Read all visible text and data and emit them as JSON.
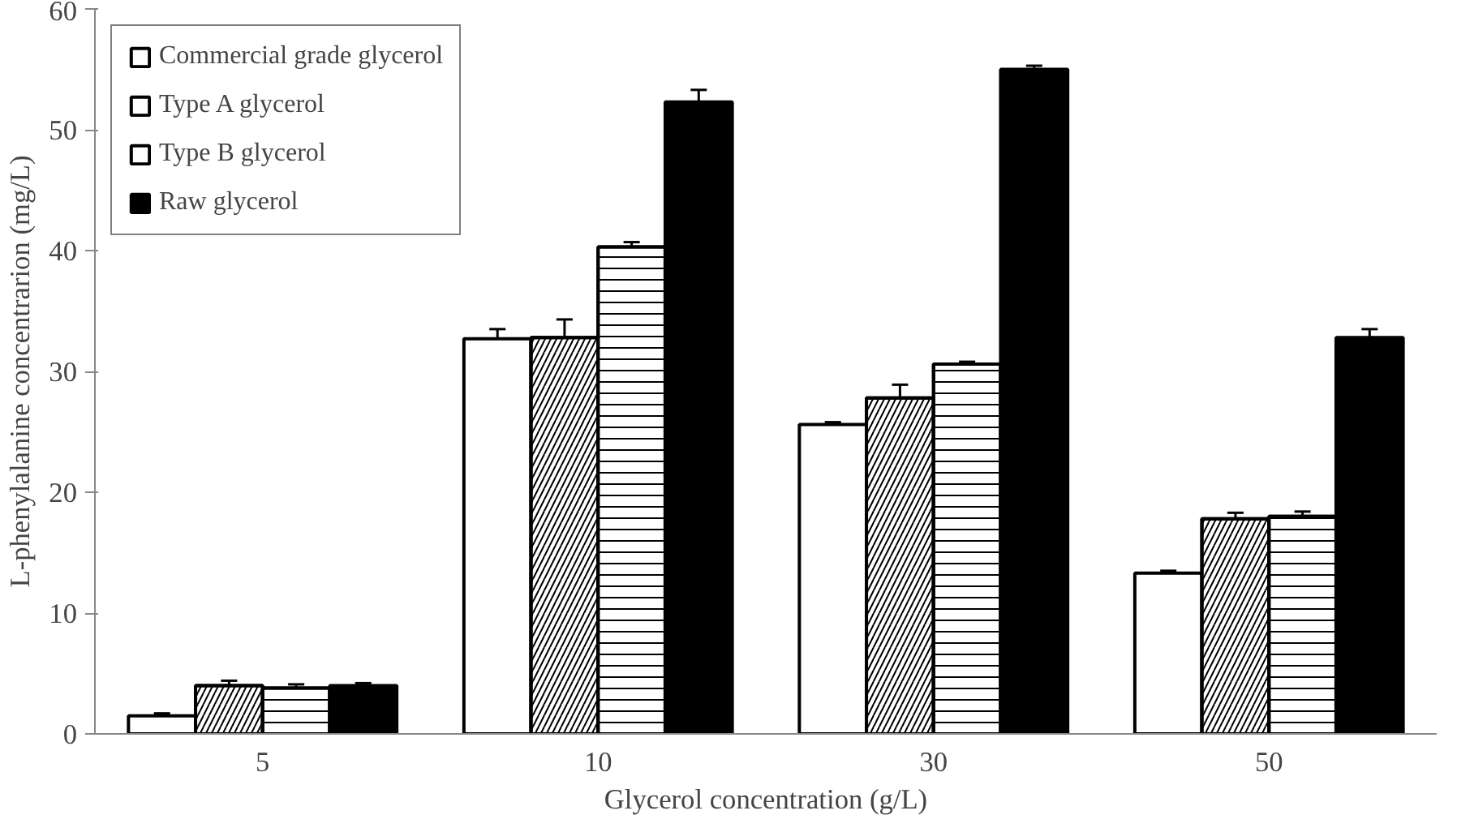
{
  "chart_data": {
    "type": "bar",
    "xlabel": "Glycerol concentration (g/L)",
    "ylabel": "L-phenylalanine concentrarion (mg/L)",
    "categories": [
      "5",
      "10",
      "30",
      "50"
    ],
    "series": [
      {
        "name": "Commercial grade glycerol",
        "color": "#ffffff",
        "values": [
          1.5,
          32.7,
          25.6,
          13.3
        ],
        "errors": [
          0.2,
          0.8,
          0.2,
          0.2
        ]
      },
      {
        "name": "Type A glycerol",
        "color": "#ffffff",
        "values": [
          4.0,
          32.8,
          27.8,
          17.8
        ],
        "errors": [
          0.4,
          1.5,
          1.1,
          0.5
        ]
      },
      {
        "name": "Type B glycerol",
        "color": "#ffffff",
        "values": [
          3.8,
          40.3,
          30.6,
          18.0
        ],
        "errors": [
          0.3,
          0.4,
          0.2,
          0.4
        ]
      },
      {
        "name": "Raw glycerol",
        "color": "#000000",
        "values": [
          4.0,
          52.3,
          55.0,
          32.8
        ],
        "errors": [
          0.2,
          1.0,
          0.3,
          0.7
        ]
      }
    ],
    "ylim": [
      0,
      60
    ],
    "yticks": [
      0,
      10,
      20,
      30,
      40,
      50,
      60
    ],
    "grid": false,
    "legend": "top left"
  }
}
